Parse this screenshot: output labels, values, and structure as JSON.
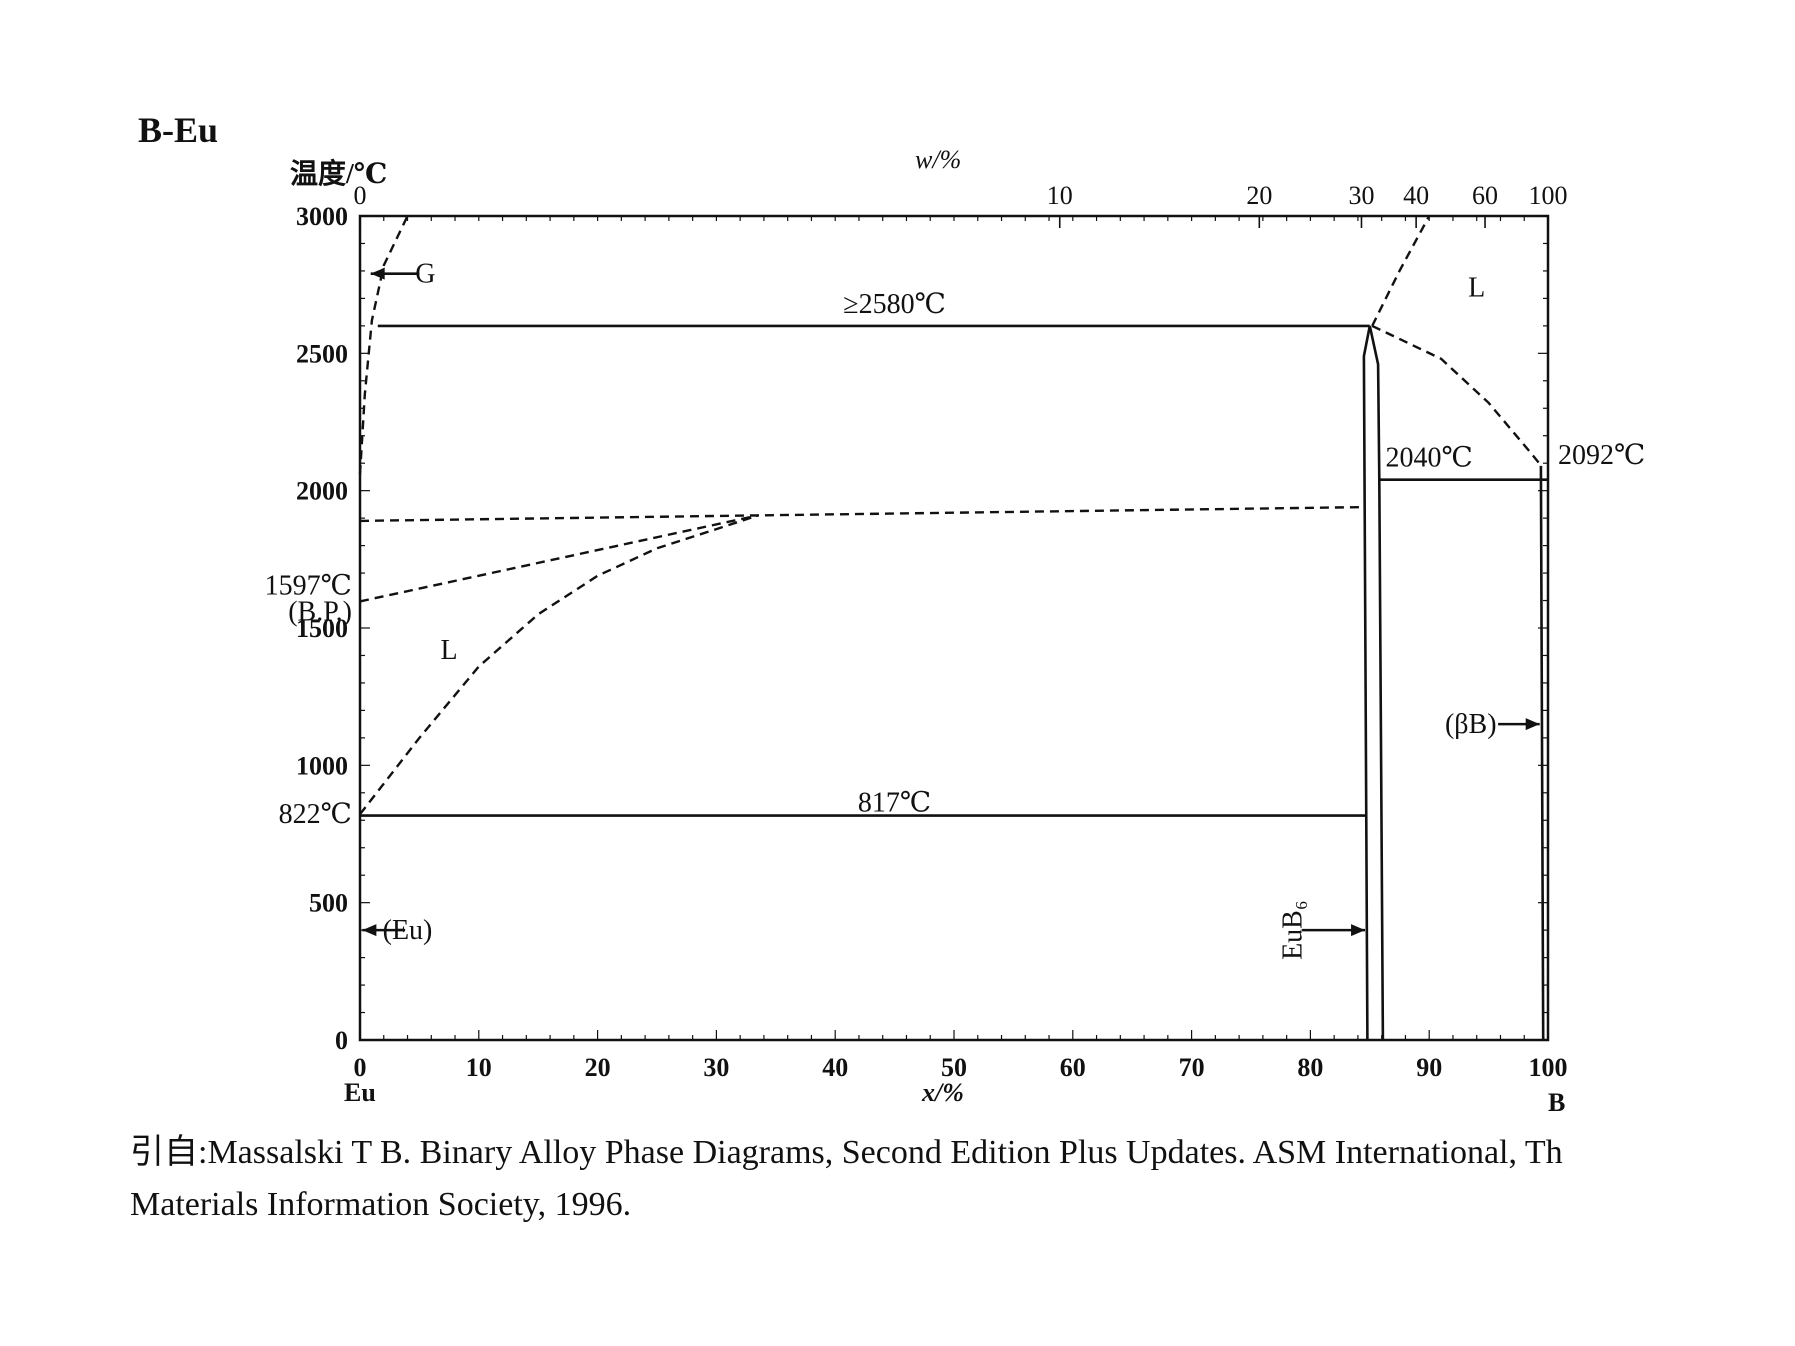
{
  "title": "B-Eu",
  "reference": {
    "line1": "引自:Massalski T B. Binary Alloy Phase Diagrams, Second Edition Plus Updates. ASM International, Th",
    "line2": "Materials Information Society, 1996."
  },
  "chart_data": {
    "type": "phase-diagram",
    "title": "B-Eu",
    "ylabel": "温度/℃",
    "xlabel": "x/%",
    "top_axis_label": "w/%",
    "ylim": [
      0,
      3000
    ],
    "xlim": [
      0,
      100
    ],
    "y_ticks": [
      "0",
      "500",
      "1000",
      "1500",
      "2000",
      "2500",
      "3000"
    ],
    "x_ticks": [
      "0",
      "10",
      "20",
      "30",
      "40",
      "50",
      "60",
      "70",
      "80",
      "90",
      "100"
    ],
    "top_ticks": [
      {
        "label": "0",
        "x": 0
      },
      {
        "label": "10",
        "x": 58.9
      },
      {
        "label": "20",
        "x": 75.7
      },
      {
        "label": "30",
        "x": 84.3
      },
      {
        "label": "40",
        "x": 88.9
      },
      {
        "label": "60",
        "x": 94.7
      },
      {
        "label": "100",
        "x": 100
      }
    ],
    "left_component": "Eu",
    "right_component": "B",
    "phase_labels": [
      {
        "text": "G",
        "x": 5.5,
        "y": 2790
      },
      {
        "text": "L",
        "x": 7.5,
        "y": 1420
      },
      {
        "text": "L",
        "x": 94,
        "y": 2740
      },
      {
        "text": "(Eu)",
        "x": 4,
        "y": 400
      },
      {
        "text": "(βB)",
        "x": 93.5,
        "y": 1150
      },
      {
        "text": "EuB₆",
        "x": 78.5,
        "y": 400
      }
    ],
    "annotations": [
      {
        "text": "≥2580℃",
        "x": 45,
        "y": 2680
      },
      {
        "text": "2040℃",
        "x": 90,
        "y": 2120
      },
      {
        "text": "2092℃",
        "x": 104.5,
        "y": 2130
      },
      {
        "text": "817℃",
        "x": 45,
        "y": 865
      },
      {
        "text": "822℃",
        "x": -3.5,
        "y": 822
      },
      {
        "text": "1597℃",
        "x": -3.5,
        "y": 1655
      },
      {
        "text": "(B.P.)",
        "x": -3.5,
        "y": 1560
      }
    ],
    "solid_lines": [
      {
        "name": "peritectic-2580",
        "points": [
          [
            1.5,
            2600
          ],
          [
            85,
            2600
          ]
        ]
      },
      {
        "name": "eutectic-2040",
        "points": [
          [
            85.8,
            2040
          ],
          [
            100,
            2040
          ]
        ]
      },
      {
        "name": "eutectic-817",
        "points": [
          [
            0,
            817
          ],
          [
            84.8,
            817
          ]
        ]
      },
      {
        "name": "eub6-left-boundary",
        "points": [
          [
            84.8,
            0
          ],
          [
            84.5,
            2490
          ],
          [
            85,
            2600
          ]
        ]
      },
      {
        "name": "eub6-right-boundary",
        "points": [
          [
            86.1,
            0
          ],
          [
            85.8,
            2040
          ],
          [
            85.7,
            2460
          ],
          [
            85,
            2600
          ]
        ]
      },
      {
        "name": "beta-b-boundary",
        "points": [
          [
            99.6,
            0
          ],
          [
            99.4,
            2090
          ]
        ]
      }
    ],
    "dashed_lines": [
      {
        "name": "gas-boundary",
        "points": [
          [
            0,
            2060
          ],
          [
            0.4,
            2350
          ],
          [
            1,
            2620
          ],
          [
            2,
            2820
          ],
          [
            4,
            3000
          ]
        ]
      },
      {
        "name": "monotectic-line",
        "points": [
          [
            0,
            1890
          ],
          [
            33.5,
            1910
          ],
          [
            84.5,
            1940
          ]
        ]
      },
      {
        "name": "boiling-line",
        "points": [
          [
            0,
            1597
          ],
          [
            33.5,
            1910
          ]
        ]
      },
      {
        "name": "liquidus-left",
        "points": [
          [
            0,
            822
          ],
          [
            5,
            1100
          ],
          [
            10,
            1360
          ],
          [
            15,
            1550
          ],
          [
            20,
            1690
          ],
          [
            25,
            1790
          ],
          [
            30,
            1860
          ],
          [
            33.5,
            1910
          ]
        ]
      },
      {
        "name": "liquidus-right",
        "points": [
          [
            85.2,
            2600
          ],
          [
            91,
            2480
          ],
          [
            95,
            2320
          ],
          [
            98.5,
            2140
          ],
          [
            99.4,
            2092
          ]
        ]
      },
      {
        "name": "top-right-boundary",
        "points": [
          [
            85.2,
            2600
          ],
          [
            87.5,
            2800
          ],
          [
            90,
            3000
          ]
        ]
      }
    ]
  }
}
